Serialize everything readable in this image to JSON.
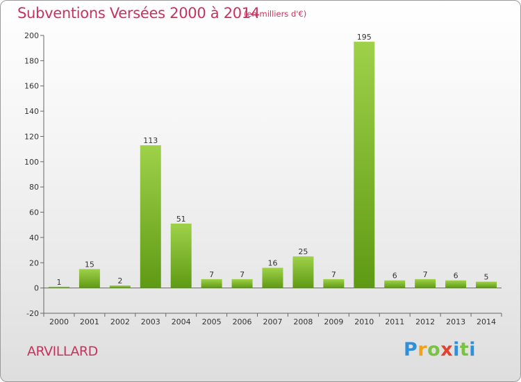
{
  "header": {
    "title": "Subventions Versées 2000 à 2014",
    "subtitle": "(en milliers d'€)"
  },
  "footer": {
    "commune": "ARVILLARD",
    "logo_text": "Proxiti",
    "logo_colors": [
      "#2f8fd8",
      "#f1a21b",
      "#7cc242",
      "#e5412f",
      "#2f8fd8",
      "#7cc242"
    ]
  },
  "chart_data": {
    "type": "bar",
    "title": "Subventions Versées 2000 à 2014",
    "subtitle": "(en milliers d'€)",
    "xlabel": "",
    "ylabel": "",
    "categories": [
      "2000",
      "2001",
      "2002",
      "2003",
      "2004",
      "2005",
      "2006",
      "2007",
      "2008",
      "2009",
      "2010",
      "2011",
      "2012",
      "2013",
      "2014"
    ],
    "values": [
      1,
      15,
      2,
      113,
      51,
      7,
      7,
      16,
      25,
      7,
      195,
      6,
      7,
      6,
      5
    ],
    "ylim": [
      -20,
      200
    ],
    "yticks": [
      -20,
      0,
      20,
      40,
      60,
      80,
      100,
      120,
      140,
      160,
      180,
      200
    ],
    "grid": false,
    "bar_color_top": "#9fd14a",
    "bar_color_bottom": "#5f9a14"
  }
}
